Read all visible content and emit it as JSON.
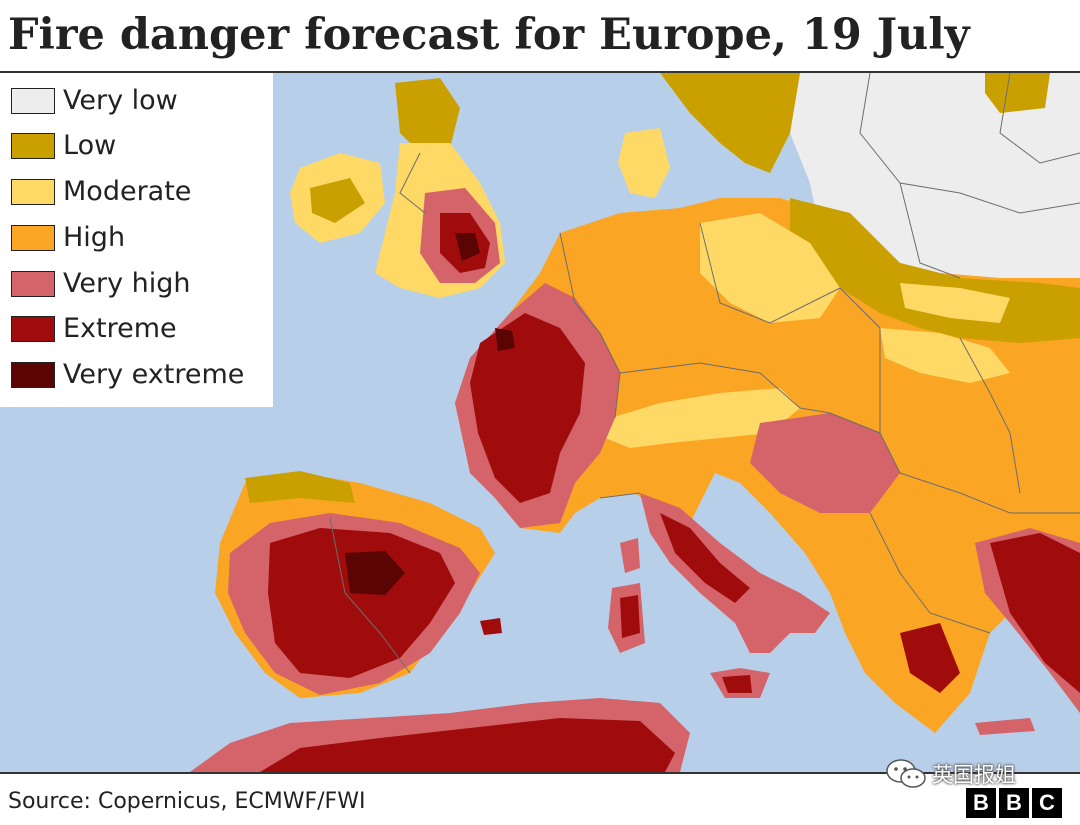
{
  "title": "Fire danger forecast for Europe, 19 July",
  "legend": {
    "items": [
      {
        "label": "Very low",
        "color": "#ededed"
      },
      {
        "label": "Low",
        "color": "#c9a000"
      },
      {
        "label": "Moderate",
        "color": "#ffd966"
      },
      {
        "label": "High",
        "color": "#faa524"
      },
      {
        "label": "Very high",
        "color": "#d4636a"
      },
      {
        "label": "Extreme",
        "color": "#a00b0b"
      },
      {
        "label": "Very extreme",
        "color": "#5a0404"
      }
    ]
  },
  "map": {
    "sea_color": "#b8cfe9",
    "border_color": "#6d6d6d"
  },
  "source": "Source: Copernicus, ECMWF/FWI",
  "watermark": {
    "icon": "wechat-icon",
    "text": "英国报姐"
  },
  "logo": {
    "letters": [
      "B",
      "B",
      "C"
    ]
  }
}
